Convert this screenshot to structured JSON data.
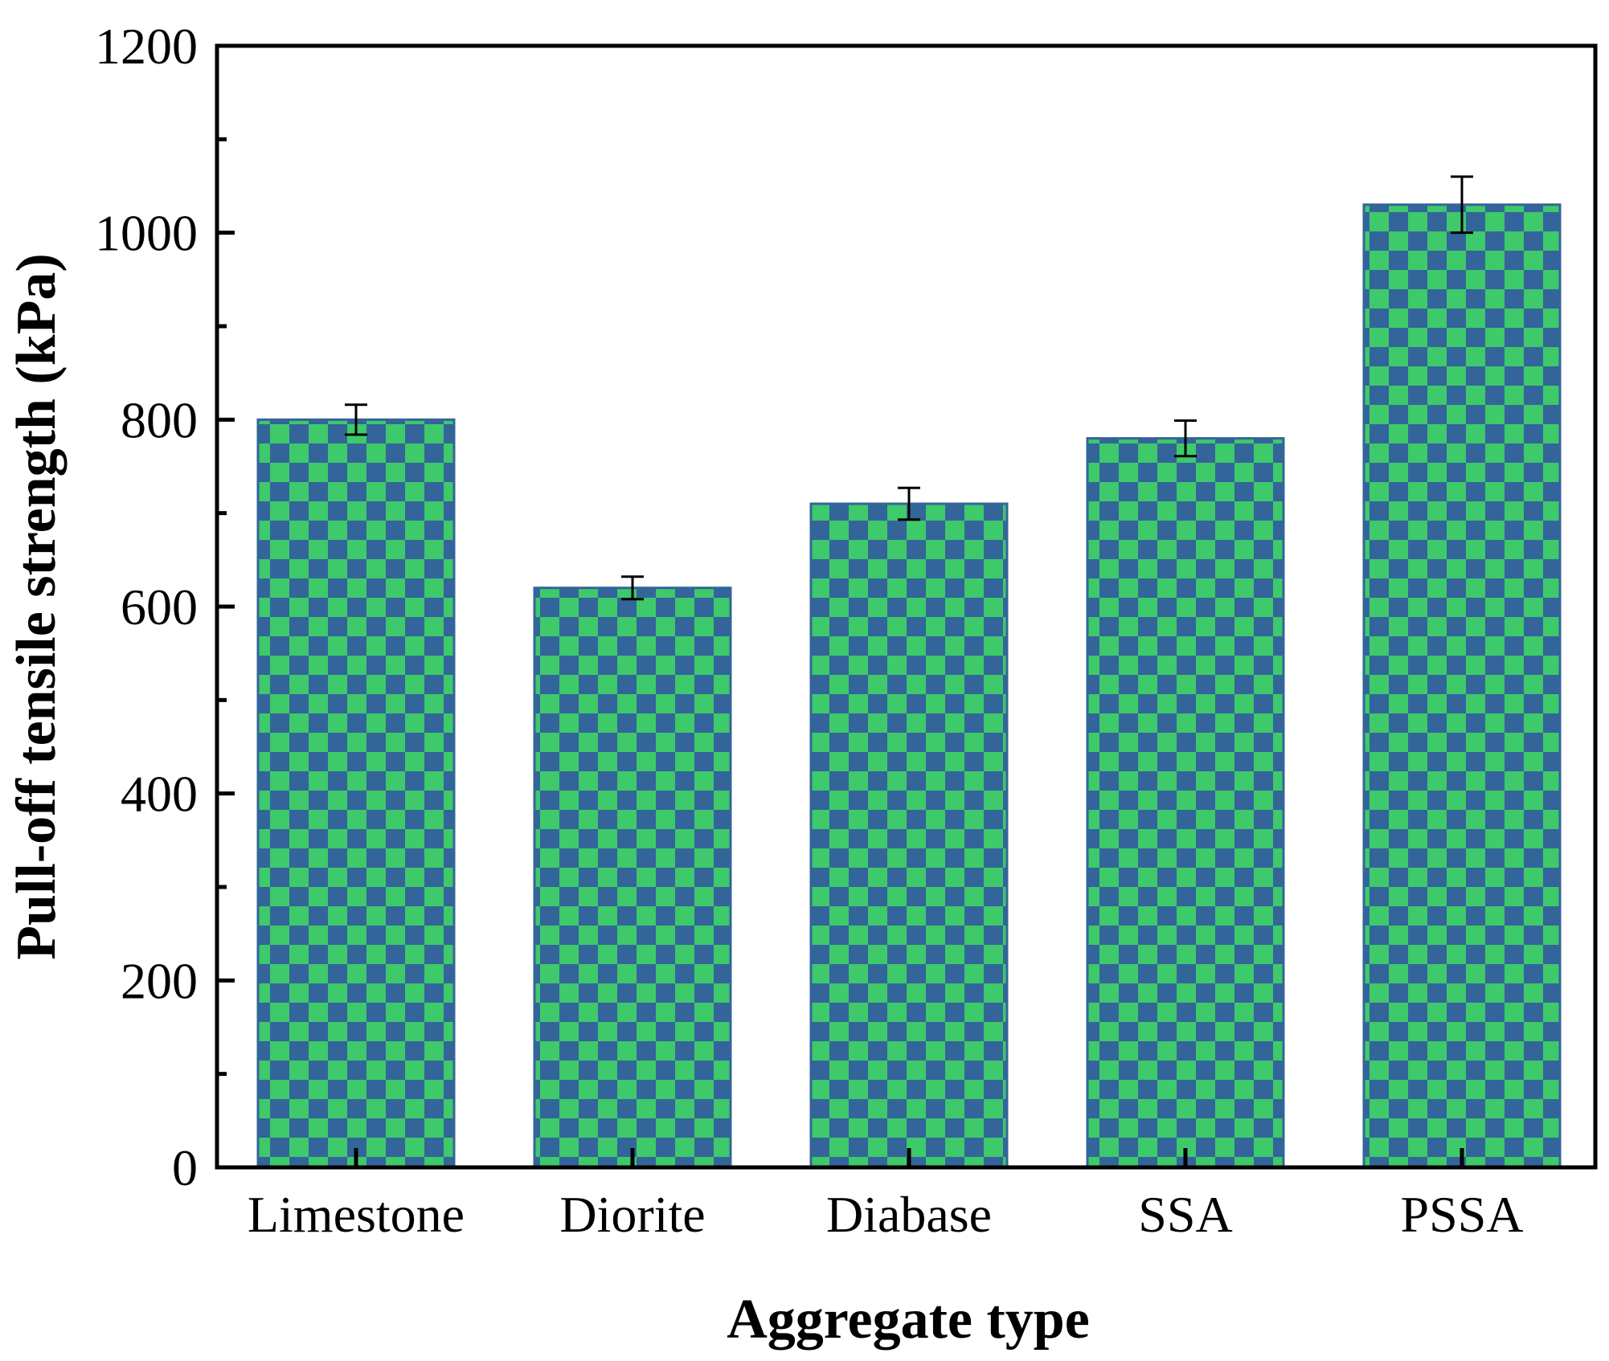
{
  "chart_data": {
    "type": "bar",
    "title": "",
    "xlabel": "Aggregate type",
    "ylabel": "Pull-off tensile strength (kPa)",
    "categories": [
      "Limestone",
      "Diorite",
      "Diabase",
      "SSA",
      "PSSA"
    ],
    "values": [
      800,
      620,
      710,
      780,
      1030
    ],
    "errors": [
      16,
      12,
      17,
      19,
      30
    ],
    "ylim": [
      0,
      1200
    ],
    "yticks": [
      0,
      200,
      400,
      600,
      800,
      1000,
      1200
    ],
    "grid": false,
    "legend": "none",
    "colors": {
      "bar_base": "#33659a",
      "bar_check": "#3ec96a",
      "axis": "#000000"
    }
  }
}
